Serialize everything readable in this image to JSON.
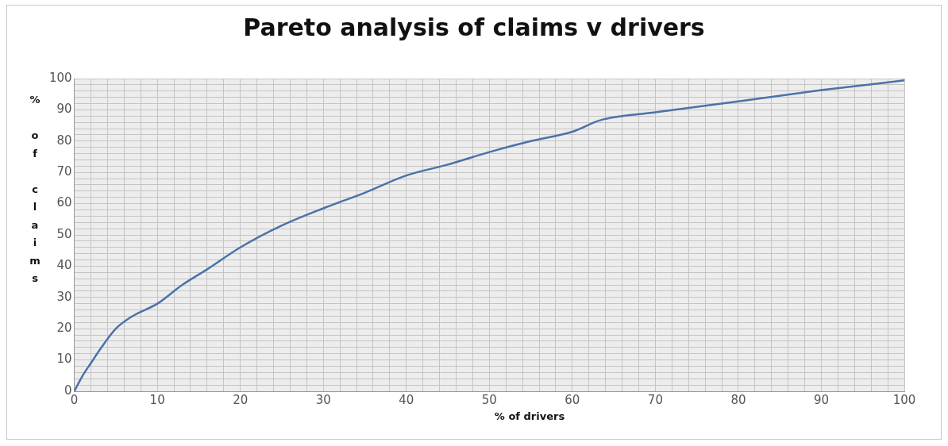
{
  "chart_data": {
    "type": "line",
    "title": "Pareto analysis of claims v drivers",
    "xlabel": "% of drivers",
    "ylabel": "% of claims",
    "x": [
      0,
      1,
      2,
      3,
      5,
      7,
      10,
      13,
      16,
      20,
      25,
      30,
      35,
      40,
      45,
      50,
      55,
      60,
      63.4,
      70,
      80,
      90,
      100
    ],
    "series": [
      {
        "color": "#4a72a8",
        "values": [
          0,
          5,
          9,
          13,
          20,
          24,
          28,
          34,
          39,
          46,
          53,
          58.5,
          63.5,
          69,
          72.5,
          76.5,
          80,
          83,
          86.7,
          89.2,
          92.7,
          96.3,
          99.4
        ]
      }
    ],
    "xlim": [
      0,
      100
    ],
    "ylim": [
      0,
      100
    ],
    "xticks": [
      0,
      {
        "value": 2,
        "label": null
      },
      {
        "value": 4,
        "label": null
      },
      {
        "value": 6,
        "label": null
      },
      {
        "value": 8,
        "label": null
      },
      10,
      {
        "value": 12,
        "label": null
      },
      {
        "value": 14,
        "label": null
      },
      {
        "value": 16,
        "label": null
      },
      {
        "value": 18,
        "label": null
      },
      20,
      {
        "value": 22,
        "label": null
      },
      {
        "value": 24,
        "label": null
      },
      {
        "value": 26,
        "label": null
      },
      {
        "value": 28,
        "label": null
      },
      30,
      {
        "value": 32,
        "label": null
      },
      {
        "value": 34,
        "label": null
      },
      {
        "value": 36,
        "label": null
      },
      {
        "value": 38,
        "label": null
      },
      40,
      {
        "value": 42,
        "label": null
      },
      {
        "value": 44,
        "label": null
      },
      {
        "value": 46,
        "label": null
      },
      {
        "value": 48,
        "label": null
      },
      50,
      {
        "value": 52,
        "label": null
      },
      {
        "value": 54,
        "label": null
      },
      {
        "value": 56,
        "label": null
      },
      {
        "value": 58,
        "label": null
      },
      60,
      {
        "value": 62,
        "label": null
      },
      {
        "value": 64,
        "label": null
      },
      {
        "value": 66,
        "label": null
      },
      {
        "value": 68,
        "label": null
      },
      70,
      {
        "value": 72,
        "label": null
      },
      {
        "value": 74,
        "label": null
      },
      {
        "value": 76,
        "label": null
      },
      {
        "value": 78,
        "label": null
      },
      80,
      {
        "value": 82,
        "label": null
      },
      {
        "value": 84,
        "label": null
      },
      {
        "value": 86,
        "label": null
      },
      {
        "value": 88,
        "label": null
      },
      90,
      {
        "value": 92,
        "label": null
      },
      {
        "value": 94,
        "label": null
      },
      {
        "value": 96,
        "label": null
      },
      {
        "value": 98,
        "label": null
      },
      100
    ],
    "yticks": [
      0,
      {
        "value": 2,
        "label": null
      },
      {
        "value": 4,
        "label": null
      },
      {
        "value": 6,
        "label": null
      },
      {
        "value": 8,
        "label": null
      },
      10,
      {
        "value": 12,
        "label": null
      },
      {
        "value": 14,
        "label": null
      },
      {
        "value": 16,
        "label": null
      },
      {
        "value": 18,
        "label": null
      },
      20,
      {
        "value": 22,
        "label": null
      },
      {
        "value": 24,
        "label": null
      },
      {
        "value": 26,
        "label": null
      },
      {
        "value": 28,
        "label": null
      },
      30,
      {
        "value": 32,
        "label": null
      },
      {
        "value": 34,
        "label": null
      },
      {
        "value": 36,
        "label": null
      },
      {
        "value": 38,
        "label": null
      },
      40,
      {
        "value": 42,
        "label": null
      },
      {
        "value": 44,
        "label": null
      },
      {
        "value": 46,
        "label": null
      },
      {
        "value": 48,
        "label": null
      },
      50,
      {
        "value": 52,
        "label": null
      },
      {
        "value": 54,
        "label": null
      },
      {
        "value": 56,
        "label": null
      },
      {
        "value": 58,
        "label": null
      },
      60,
      {
        "value": 62,
        "label": null
      },
      {
        "value": 64,
        "label": null
      },
      {
        "value": 66,
        "label": null
      },
      {
        "value": 68,
        "label": null
      },
      70,
      {
        "value": 72,
        "label": null
      },
      {
        "value": 74,
        "label": null
      },
      {
        "value": 76,
        "label": null
      },
      {
        "value": 78,
        "label": null
      },
      80,
      {
        "value": 82,
        "label": null
      },
      {
        "value": 84,
        "label": null
      },
      {
        "value": 86,
        "label": null
      },
      {
        "value": 88,
        "label": null
      },
      90,
      {
        "value": 92,
        "label": null
      },
      {
        "value": 94,
        "label": null
      },
      {
        "value": 96,
        "label": null
      },
      {
        "value": 98,
        "label": null
      },
      100
    ],
    "grid": true,
    "marker": "none",
    "line_style": "solid"
  }
}
